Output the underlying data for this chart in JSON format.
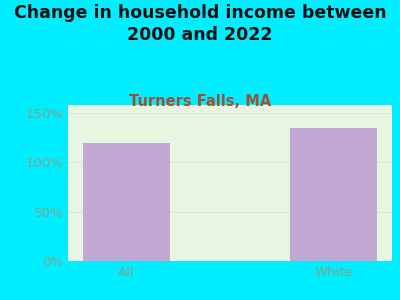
{
  "title": "Change in household income between\n2000 and 2022",
  "subtitle": "Turners Falls, MA",
  "categories": [
    "All",
    "White"
  ],
  "values": [
    120,
    135
  ],
  "bar_color": "#c4a8d4",
  "background_color": "#00EEFF",
  "plot_bg_top": "#e8f5e0",
  "plot_bg_bottom": "#f5f5f0",
  "title_color": "#111111",
  "subtitle_color": "#a05030",
  "tick_label_color": "#88a088",
  "ytick_labels": [
    "0%",
    "50%",
    "100%",
    "150%"
  ],
  "ytick_values": [
    0,
    50,
    100,
    150
  ],
  "ylim": [
    0,
    158
  ],
  "title_fontsize": 12.5,
  "subtitle_fontsize": 10.5,
  "tick_fontsize": 9.5
}
